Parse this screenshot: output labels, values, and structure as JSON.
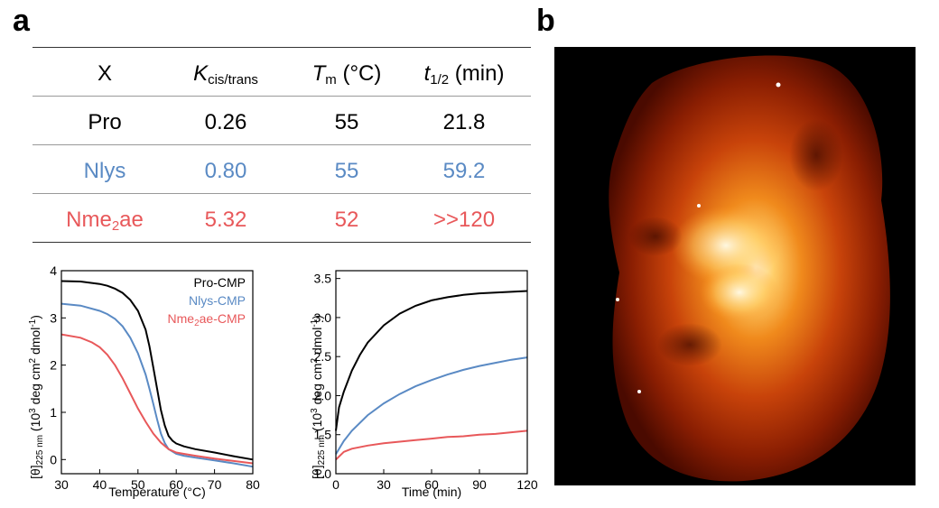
{
  "panels": {
    "a": "a",
    "b": "b"
  },
  "table": {
    "headers": {
      "x": "X",
      "k_main": "K",
      "k_sub": "cis/trans",
      "tm_main": "T",
      "tm_sub": "m",
      "tm_unit": "(°C)",
      "t_main": "t",
      "t_sub": "1/2",
      "t_unit": "(min)"
    },
    "rows": [
      {
        "x": "Pro",
        "k": "0.26",
        "tm": "55",
        "t": "21.8",
        "color": "#000000"
      },
      {
        "x_main": "Nlys",
        "k": "0.80",
        "tm": "55",
        "t": "59.2",
        "color": "#5a8ac4"
      },
      {
        "x_main": "Nme",
        "x_sub": "2",
        "x_tail": "ae",
        "k": "5.32",
        "tm": "52",
        "t": ">>120",
        "color": "#e8585a"
      }
    ]
  },
  "chart_data": [
    {
      "type": "line",
      "xlabel": "Temperature (°C)",
      "ylabel": "[θ]225 nm (10^3 deg cm^2 dmol^-1)",
      "xlim": [
        30,
        80
      ],
      "ylim": [
        -0.3,
        4
      ],
      "xticks": [
        30,
        40,
        50,
        60,
        70,
        80
      ],
      "yticks": [
        0,
        1,
        2,
        3,
        4
      ],
      "legend": "top-right",
      "series": [
        {
          "name": "Pro-CMP",
          "color": "#000000",
          "x": [
            30,
            35,
            40,
            42,
            44,
            46,
            48,
            50,
            52,
            53,
            54,
            55,
            56,
            57,
            58,
            59,
            60,
            62,
            65,
            70,
            75,
            80
          ],
          "values": [
            3.78,
            3.77,
            3.72,
            3.68,
            3.62,
            3.53,
            3.38,
            3.15,
            2.75,
            2.4,
            1.95,
            1.5,
            1.05,
            0.72,
            0.5,
            0.4,
            0.34,
            0.28,
            0.22,
            0.15,
            0.07,
            0.0
          ]
        },
        {
          "name": "Nlys-CMP",
          "color": "#5a8ac4",
          "x": [
            30,
            35,
            40,
            42,
            44,
            46,
            48,
            50,
            52,
            53,
            54,
            55,
            56,
            57,
            58,
            60,
            62,
            65,
            70,
            75,
            80
          ],
          "values": [
            3.3,
            3.26,
            3.15,
            3.08,
            2.98,
            2.82,
            2.58,
            2.25,
            1.8,
            1.5,
            1.18,
            0.85,
            0.55,
            0.35,
            0.22,
            0.12,
            0.08,
            0.04,
            -0.02,
            -0.08,
            -0.15
          ]
        },
        {
          "name": "Nme2ae-CMP",
          "name_main": "Nme",
          "name_sub": "2",
          "name_tail": "ae-CMP",
          "color": "#e8585a",
          "x": [
            30,
            35,
            38,
            40,
            42,
            44,
            46,
            48,
            50,
            52,
            54,
            56,
            58,
            60,
            62,
            65,
            70,
            75,
            80
          ],
          "values": [
            2.65,
            2.58,
            2.48,
            2.38,
            2.22,
            2.0,
            1.72,
            1.4,
            1.08,
            0.8,
            0.55,
            0.36,
            0.22,
            0.15,
            0.12,
            0.08,
            0.02,
            -0.03,
            -0.08
          ]
        }
      ]
    },
    {
      "type": "line",
      "xlabel": "Time (min)",
      "ylabel": "[θ]225 nm (10^3 deg cm^2 dmol^-1)",
      "xlim": [
        0,
        120
      ],
      "ylim": [
        1.0,
        3.6
      ],
      "xticks": [
        0,
        30,
        60,
        90,
        120
      ],
      "yticks": [
        1.0,
        1.5,
        2.0,
        2.5,
        3.0,
        3.5
      ],
      "series": [
        {
          "name": "Pro-CMP",
          "color": "#000000",
          "x": [
            0,
            2,
            5,
            10,
            15,
            20,
            30,
            40,
            50,
            60,
            70,
            80,
            90,
            100,
            110,
            120
          ],
          "values": [
            1.55,
            1.85,
            2.05,
            2.32,
            2.52,
            2.68,
            2.9,
            3.05,
            3.15,
            3.22,
            3.26,
            3.29,
            3.31,
            3.32,
            3.33,
            3.34
          ]
        },
        {
          "name": "Nlys-CMP",
          "color": "#5a8ac4",
          "x": [
            0,
            5,
            10,
            20,
            30,
            40,
            50,
            60,
            70,
            80,
            90,
            100,
            110,
            120
          ],
          "values": [
            1.25,
            1.42,
            1.55,
            1.75,
            1.9,
            2.02,
            2.12,
            2.2,
            2.27,
            2.33,
            2.38,
            2.42,
            2.46,
            2.49
          ]
        },
        {
          "name": "Nme2ae-CMP",
          "color": "#e8585a",
          "x": [
            0,
            5,
            10,
            20,
            30,
            40,
            50,
            60,
            70,
            80,
            90,
            100,
            110,
            120
          ],
          "values": [
            1.18,
            1.28,
            1.32,
            1.36,
            1.39,
            1.41,
            1.43,
            1.45,
            1.47,
            1.48,
            1.5,
            1.51,
            1.53,
            1.55
          ]
        }
      ]
    }
  ]
}
